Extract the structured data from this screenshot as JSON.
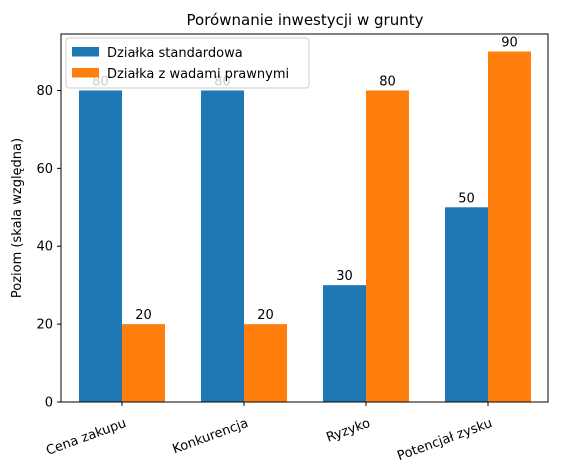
{
  "chart_data": {
    "type": "bar",
    "title": "Porównanie inwestycji w grunty",
    "xlabel": "",
    "ylabel": "Poziom (skala względna)",
    "categories": [
      "Cena zakupu",
      "Konkurencja",
      "Ryzyko",
      "Potencjał zysku"
    ],
    "series": [
      {
        "name": "Działka standardowa",
        "values": [
          80,
          80,
          30,
          50
        ],
        "color": "#1f77b4"
      },
      {
        "name": "Działka z wadami prawnymi",
        "values": [
          20,
          20,
          80,
          90
        ],
        "color": "#ff7f0e"
      }
    ],
    "ylim": [
      0,
      94.5
    ],
    "yticks": [
      0,
      20,
      40,
      60,
      80
    ],
    "grid": false,
    "legend_position": "top-left",
    "xtick_rotation": -20
  }
}
